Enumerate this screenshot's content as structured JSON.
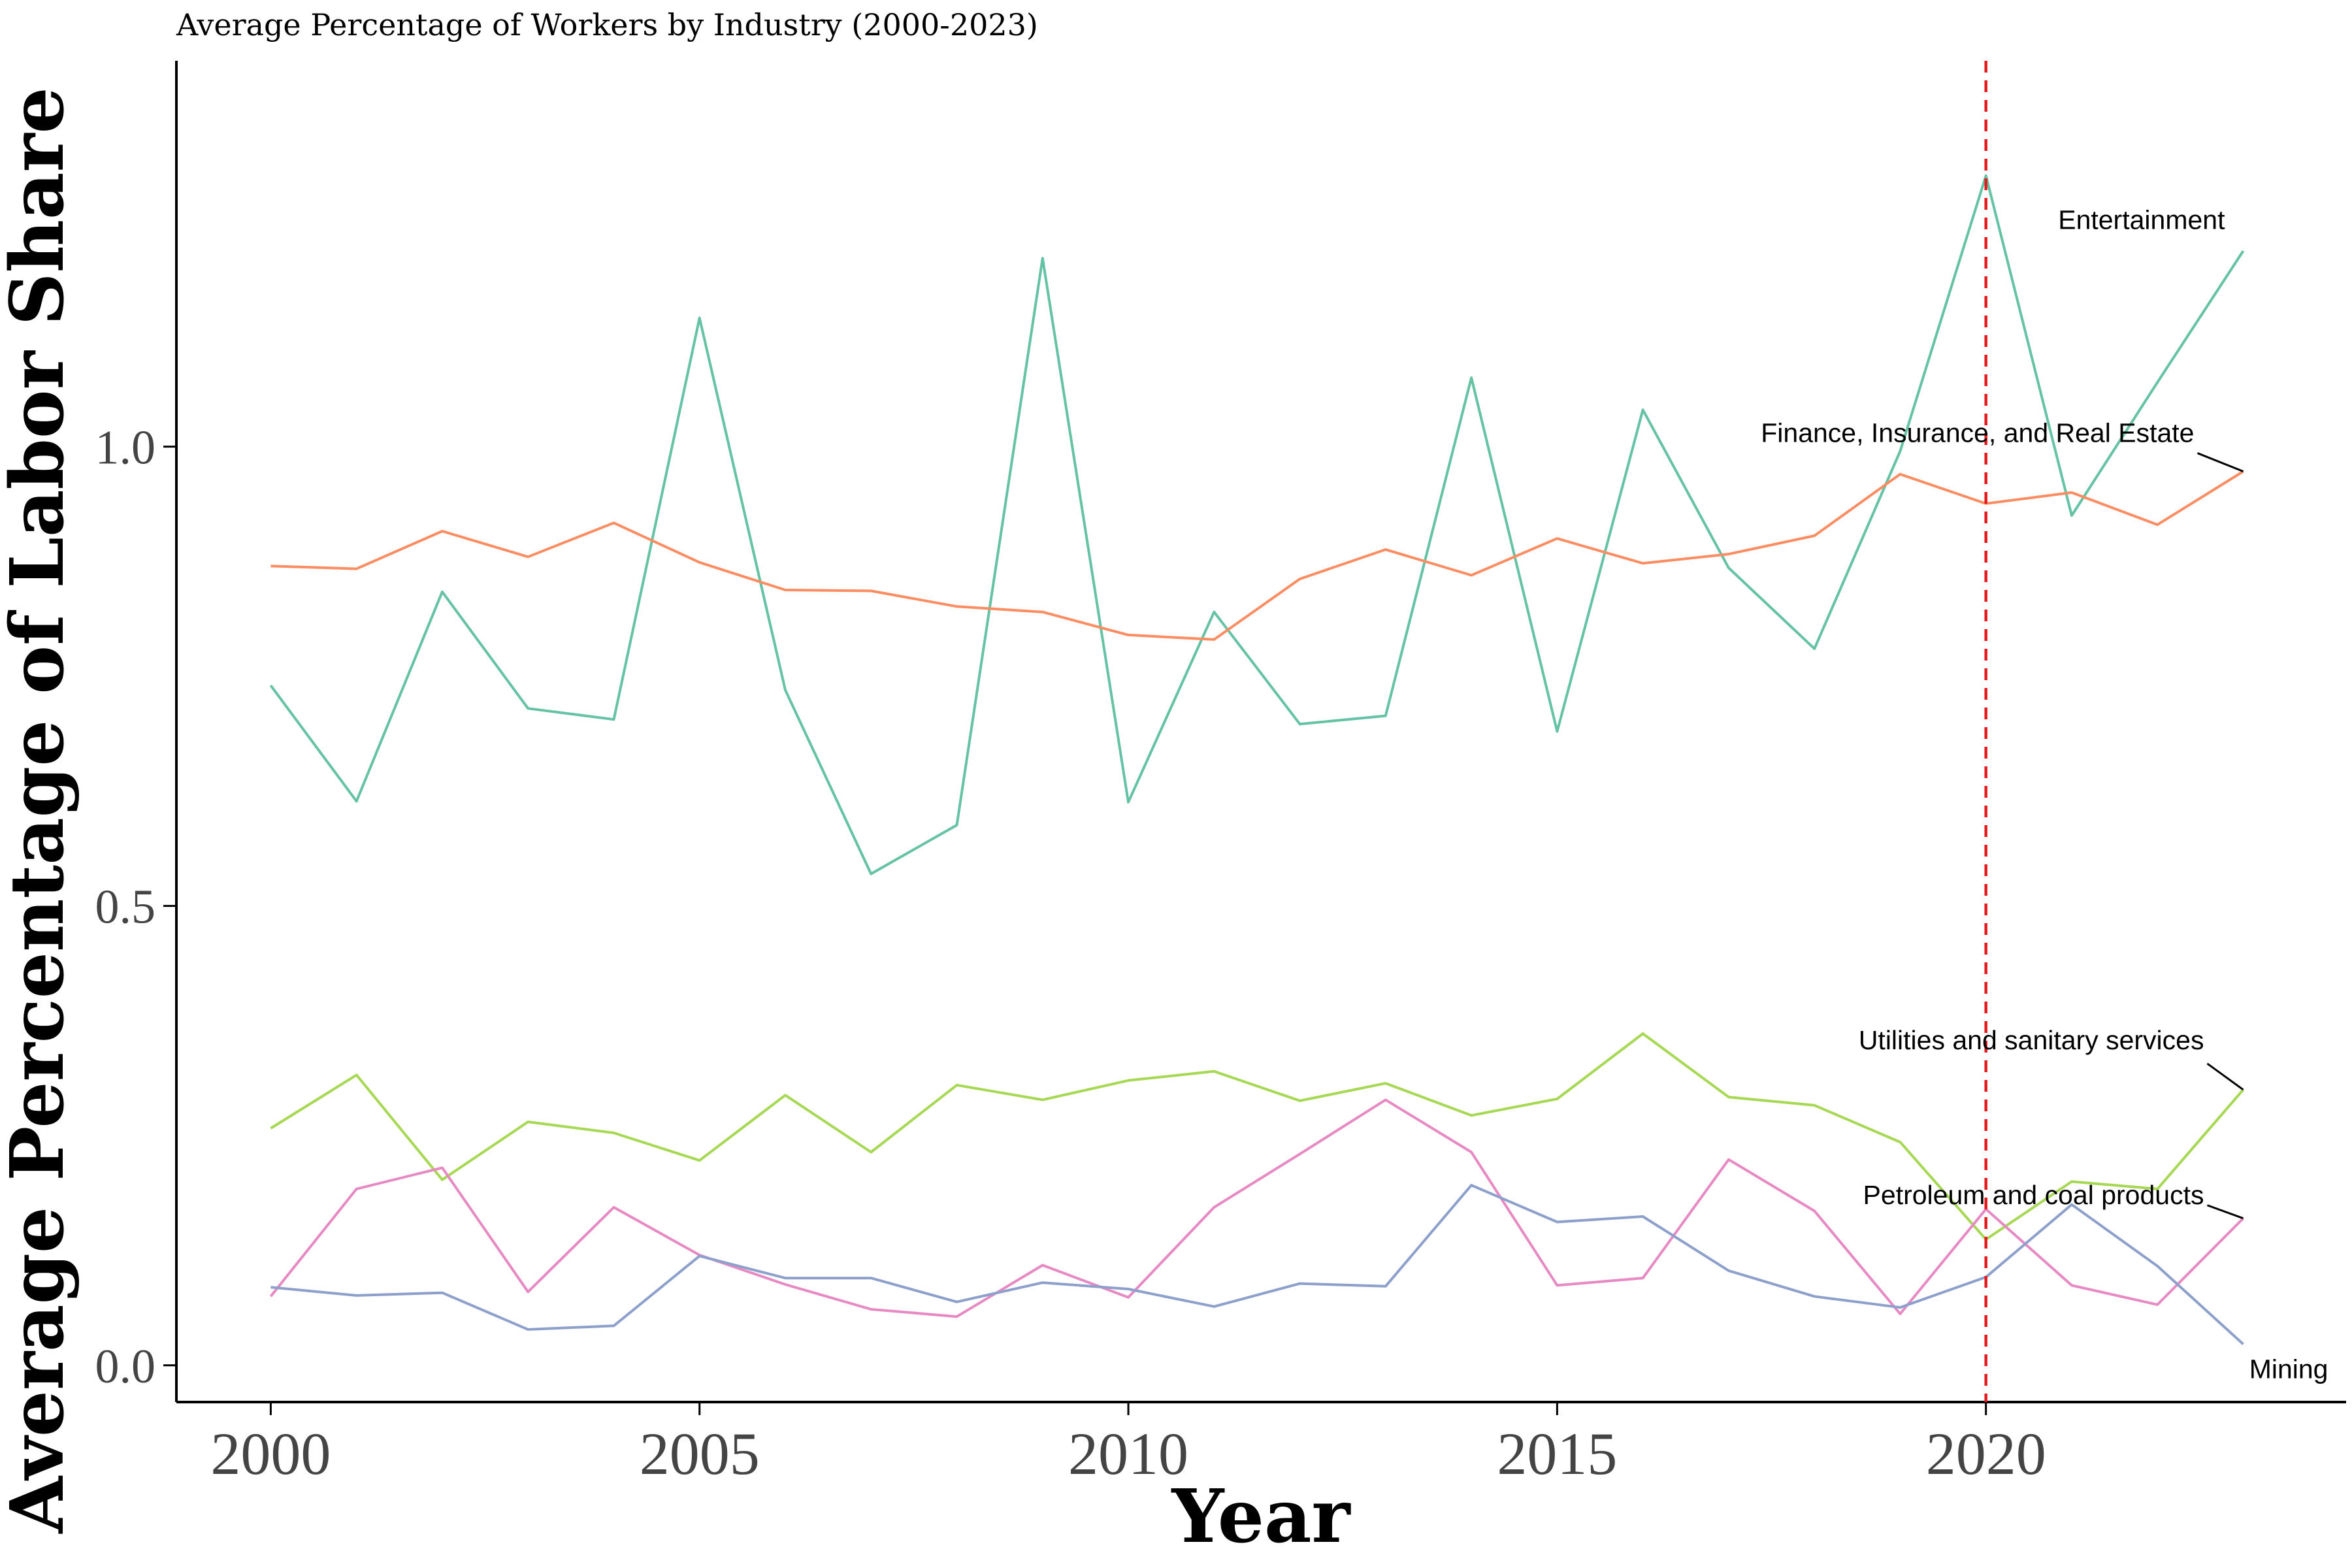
{
  "chart_data": {
    "type": "line",
    "title": "Average Percentage of Workers by Industry (2000-2023)",
    "xlabel": "Year",
    "ylabel": "Average Percentage of Labor Share",
    "xlim": [
      1998.9,
      2024.2
    ],
    "ylim": [
      -0.04,
      1.42
    ],
    "xticks": [
      2000,
      2005,
      2010,
      2015,
      2020
    ],
    "yticks": [
      0.0,
      0.5,
      1.0
    ],
    "ytick_labels": [
      "0.0",
      "0.5",
      "1.0"
    ],
    "reference_line": {
      "x": 2020,
      "color": "#e41a1c",
      "style": "dashed"
    },
    "grid": false,
    "legend": "none (direct labels at line ends)",
    "x": [
      2000,
      2001,
      2002,
      2003,
      2004,
      2005,
      2006,
      2007,
      2008,
      2009,
      2010,
      2011,
      2012,
      2013,
      2014,
      2015,
      2016,
      2017,
      2018,
      2019,
      2020,
      2021,
      2022,
      2023
    ],
    "series": [
      {
        "name": "Entertainment",
        "color": "#66c2a5",
        "values": [
          0.74,
          0.614,
          0.842,
          0.715,
          0.703,
          1.14,
          0.735,
          0.535,
          0.588,
          1.205,
          0.613,
          0.82,
          0.698,
          0.707,
          1.075,
          0.69,
          1.04,
          0.868,
          0.78,
          0.995,
          1.295,
          0.925,
          1.07,
          1.213
        ]
      },
      {
        "name": "Finance, Insurance, and Real Estate",
        "color": "#fc8d62",
        "values": [
          0.87,
          0.867,
          0.908,
          0.88,
          0.917,
          0.874,
          0.844,
          0.843,
          0.826,
          0.82,
          0.795,
          0.79,
          0.856,
          0.888,
          0.86,
          0.9,
          0.873,
          0.883,
          0.903,
          0.97,
          0.938,
          0.95,
          0.915,
          0.973
        ]
      },
      {
        "name": "Utilities and sanitary services",
        "color": "#a6d854",
        "values": [
          0.258,
          0.316,
          0.202,
          0.265,
          0.253,
          0.223,
          0.294,
          0.232,
          0.305,
          0.289,
          0.31,
          0.32,
          0.288,
          0.307,
          0.272,
          0.29,
          0.361,
          0.292,
          0.283,
          0.243,
          0.137,
          0.2,
          0.192,
          0.3
        ]
      },
      {
        "name": "Petroleum and coal products",
        "color": "#e78ac3",
        "values": [
          0.075,
          0.192,
          0.215,
          0.08,
          0.172,
          0.12,
          0.088,
          0.061,
          0.053,
          0.109,
          0.074,
          0.172,
          0.23,
          0.289,
          0.232,
          0.087,
          0.095,
          0.224,
          0.168,
          0.056,
          0.17,
          0.087,
          0.066,
          0.16
        ]
      },
      {
        "name": "Mining",
        "color": "#8da0cb",
        "values": [
          0.085,
          0.076,
          0.079,
          0.039,
          0.043,
          0.119,
          0.095,
          0.095,
          0.069,
          0.09,
          0.083,
          0.064,
          0.089,
          0.086,
          0.196,
          0.156,
          0.162,
          0.103,
          0.075,
          0.063,
          0.096,
          0.175,
          0.108,
          0.023
        ]
      }
    ]
  }
}
